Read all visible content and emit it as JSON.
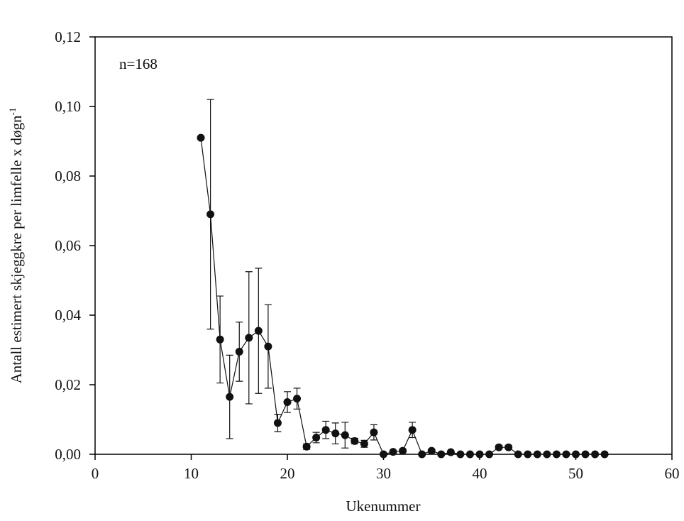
{
  "chart_data": {
    "type": "line",
    "xlabel": "Ukenummer",
    "ylabel": "Antall estimert skjeggkre per limfelle x døgn",
    "ylabel_superscript": "-1",
    "annotation": "n=168",
    "color": "#111111",
    "x": [
      11,
      12,
      13,
      14,
      15,
      16,
      17,
      18,
      19,
      20,
      21,
      22,
      23,
      24,
      25,
      26,
      27,
      28,
      29,
      30,
      31,
      32,
      33,
      34,
      35,
      36,
      37,
      38,
      39,
      40,
      41,
      42,
      43,
      44,
      45,
      46,
      47,
      48,
      49,
      50,
      51,
      52,
      53
    ],
    "values": [
      0.091,
      0.069,
      0.033,
      0.0165,
      0.0295,
      0.0335,
      0.0355,
      0.031,
      0.009,
      0.015,
      0.016,
      0.0022,
      0.0048,
      0.007,
      0.006,
      0.0055,
      0.0038,
      0.003,
      0.0063,
      0,
      0.0007,
      0.001,
      0.007,
      0,
      0.001,
      0,
      0.0006,
      0,
      0,
      0,
      0,
      0.002,
      0.002,
      0,
      0,
      0,
      0,
      0,
      0,
      0,
      0,
      0,
      0
    ],
    "errors": [
      0,
      0.033,
      0.0125,
      0.012,
      0.0085,
      0.019,
      0.018,
      0.012,
      0.0025,
      0.003,
      0.003,
      0.0008,
      0.0015,
      0.0025,
      0.003,
      0.0037,
      0.0008,
      0.001,
      0.0022,
      0,
      0.0004,
      0.0005,
      0.0022,
      0,
      0.0005,
      0,
      0.0004,
      0,
      0,
      0,
      0,
      0.0005,
      0.0005,
      0,
      0,
      0,
      0,
      0,
      0,
      0,
      0,
      0,
      0
    ],
    "xlim": [
      0,
      60
    ],
    "xticks": [
      0,
      10,
      20,
      30,
      40,
      50,
      60
    ],
    "ylim": [
      0,
      0.12
    ],
    "yticks": [
      {
        "value": 0,
        "label": "0,00"
      },
      {
        "value": 0.02,
        "label": "0,02"
      },
      {
        "value": 0.04,
        "label": "0,04"
      },
      {
        "value": 0.06,
        "label": "0,06"
      },
      {
        "value": 0.08,
        "label": "0,08"
      },
      {
        "value": 0.1,
        "label": "0,10"
      },
      {
        "value": 0.12,
        "label": "0,12"
      }
    ]
  }
}
